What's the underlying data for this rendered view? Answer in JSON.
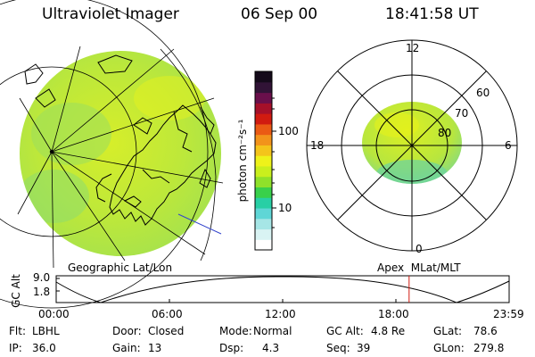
{
  "header": {
    "instrument": "Ultraviolet Imager",
    "date": "06 Sep 00",
    "time": "18:41:58 UT"
  },
  "left_panel": {
    "caption": "Geographic Lat/Lon"
  },
  "right_panel": {
    "caption": "Apex  MLat/MLT",
    "mlt_labels": {
      "top": "12",
      "left": "18",
      "right": "6",
      "bottom": "0"
    },
    "lat_labels": [
      "60",
      "70",
      "80"
    ]
  },
  "colorbar": {
    "label": "photon cm⁻²s⁻¹",
    "ticks": [
      "100",
      "10"
    ],
    "colors": [
      "#ffffff",
      "#d9f3f3",
      "#a6e6e6",
      "#5fd6d6",
      "#28cfa5",
      "#39d04b",
      "#8fe12a",
      "#c9ef1d",
      "#eef21a",
      "#f4c41b",
      "#f2931b",
      "#ea5a14",
      "#d11b10",
      "#a6102a",
      "#6a0f4b",
      "#311336",
      "#140a1a"
    ]
  },
  "timeline": {
    "ylabel": "GC Alt",
    "yticks": [
      "9.0",
      "1.8"
    ],
    "xticks": [
      "00:00",
      "06:00",
      "12:00",
      "18:00",
      "23:59"
    ],
    "marker_hour": 18.7
  },
  "info": {
    "flt_label": "Flt:",
    "flt_value": "LBHL",
    "ip_label": "IP:",
    "ip_value": "36.0",
    "door_label": "Door:",
    "door_value": "Closed",
    "gain_label": "Gain:",
    "gain_value": "13",
    "mode_label": "Mode:",
    "mode_value": "Normal",
    "dsp_label": "Dsp:",
    "dsp_value": "4.3",
    "gcalt_label": "GC Alt:",
    "gcalt_value": "4.8 Re",
    "seq_label": "Seq:",
    "seq_value": "39",
    "glat_label": "GLat:",
    "glat_value": "78.6",
    "glon_label": "GLon:",
    "glon_value": "279.8"
  }
}
